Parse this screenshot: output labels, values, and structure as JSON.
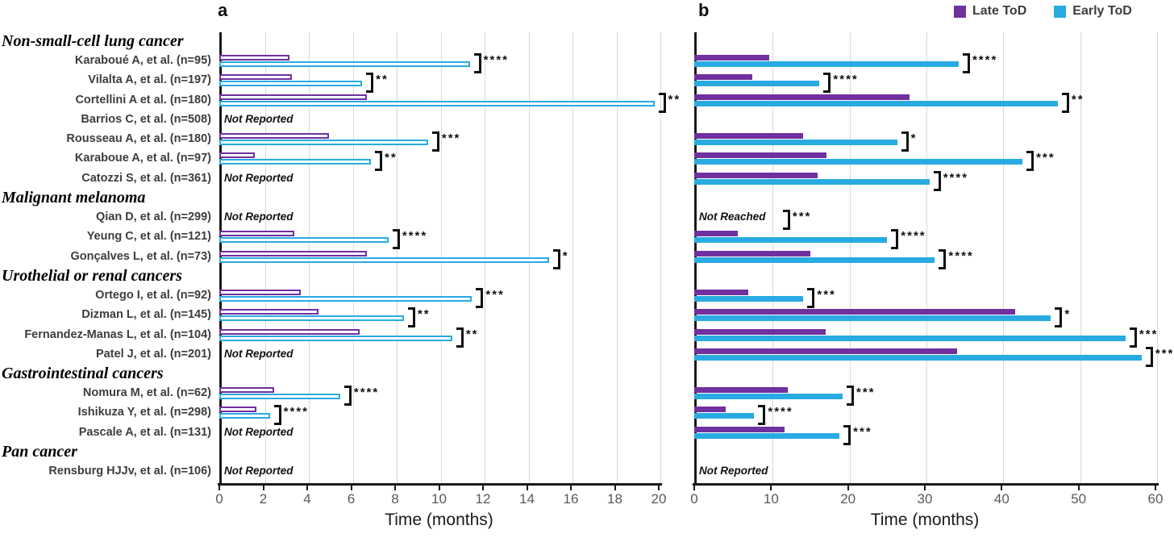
{
  "chart_data": {
    "type": "bar",
    "orientation": "horizontal",
    "legend": [
      {
        "name": "Late ToD",
        "color": "#7030A0"
      },
      {
        "name": "Early ToD",
        "color": "#29ABE2"
      }
    ],
    "colors": {
      "late": "#7030A0",
      "early": "#29ABE2",
      "axis": "#1a1a1a",
      "grid": "#d9d9d9",
      "tick_label": "#595959",
      "study_label": "#3d3d3d"
    },
    "panels": [
      {
        "letter": "a",
        "xlabel": "Time (months)",
        "xlim": [
          0,
          20
        ],
        "xticks": [
          0,
          2,
          4,
          6,
          8,
          10,
          12,
          14,
          16,
          18,
          20
        ],
        "bar_style": "outline"
      },
      {
        "letter": "b",
        "xlabel": "Time (months)",
        "xlim": [
          0,
          60
        ],
        "xticks": [
          0,
          10,
          20,
          30,
          40,
          50,
          60
        ],
        "bar_style": "solid"
      }
    ],
    "notes_legend": {
      "not_reported": "Not Reported",
      "not_reached": "Not Reached"
    },
    "groups": [
      {
        "label": "Non-small-cell lung cancer",
        "studies": [
          {
            "label": "Karaboué A, et al. (n=95)",
            "a": {
              "late": 3.2,
              "early": 11.4,
              "sig": "****"
            },
            "b": {
              "late": 9.8,
              "early": 34.4,
              "sig": "****"
            }
          },
          {
            "label": "Vilalta A, et al. (n=197)",
            "a": {
              "late": 3.3,
              "early": 6.5,
              "sig": "**"
            },
            "b": {
              "late": 7.6,
              "early": 16.3,
              "sig": "****"
            }
          },
          {
            "label": "Cortellini A et al. (n=180)",
            "a": {
              "late": 6.7,
              "early": 19.8,
              "sig": "**"
            },
            "b": {
              "late": 28.0,
              "early": 47.3,
              "sig": "**"
            }
          },
          {
            "label": "Barrios C, et al. (n=508)",
            "a": {
              "note": "Not Reported"
            },
            "b": {}
          },
          {
            "label": "Rousseau A, et al. (n=180)",
            "a": {
              "late": 5.0,
              "early": 9.5,
              "sig": "***"
            },
            "b": {
              "late": 14.2,
              "early": 26.4,
              "sig": "*"
            }
          },
          {
            "label": "Karaboue A, et al. (n=97)",
            "a": {
              "late": 1.6,
              "early": 6.9,
              "sig": "**"
            },
            "b": {
              "late": 17.2,
              "early": 42.7,
              "sig": "***"
            }
          },
          {
            "label": "Catozzi S, et al. (n=361)",
            "a": {
              "note": "Not Reported"
            },
            "b": {
              "late": 16.0,
              "early": 30.6,
              "sig": "****"
            }
          }
        ]
      },
      {
        "label": "Malignant melanoma",
        "studies": [
          {
            "label": "Qian D, et al. (n=299)",
            "a": {
              "note": "Not Reported"
            },
            "b": {
              "note": "Not Reached",
              "sig": "***",
              "sig_x": 11
            }
          },
          {
            "label": "Yeung C, et al. (n=121)",
            "a": {
              "late": 3.4,
              "early": 7.7,
              "sig": "****"
            },
            "b": {
              "late": 5.7,
              "early": 25.1,
              "sig": "****"
            }
          },
          {
            "label": "Gonçalves L, et al. (n=73)",
            "a": {
              "late": 6.7,
              "early": 15.0,
              "sig": "*"
            },
            "b": {
              "late": 15.1,
              "early": 31.3,
              "sig": "****"
            }
          }
        ]
      },
      {
        "label": "Urothelial or renal cancers",
        "studies": [
          {
            "label": "Ortego I, et al. (n=92)",
            "a": {
              "late": 3.7,
              "early": 11.5,
              "sig": "***"
            },
            "b": {
              "late": 7.0,
              "early": 14.2,
              "sig": "***"
            }
          },
          {
            "label": "Dizman L, et al. (n=145)",
            "a": {
              "late": 4.5,
              "early": 8.4,
              "sig": "**"
            },
            "b": {
              "late": 41.8,
              "early": 46.4,
              "sig": "*"
            }
          },
          {
            "label": "Fernandez-Manas L, et al. (n=104)",
            "a": {
              "late": 6.4,
              "early": 10.6,
              "sig": "**"
            },
            "b": {
              "late": 17.1,
              "early": 56.1,
              "sig": "***"
            }
          },
          {
            "label": "Patel J, et al. (n=201)",
            "a": {
              "note": "Not Reported"
            },
            "b": {
              "late": 34.2,
              "early": 58.2,
              "sig": "***"
            }
          }
        ]
      },
      {
        "label": "Gastrointestinal cancers",
        "studies": [
          {
            "label": "Nomura M, et al. (n=62)",
            "a": {
              "late": 2.5,
              "early": 5.5,
              "sig": "****"
            },
            "b": {
              "late": 12.2,
              "early": 19.3,
              "sig": "***"
            }
          },
          {
            "label": "Ishikuza Y, et al. (n=298)",
            "a": {
              "late": 1.7,
              "early": 2.3,
              "sig": "****"
            },
            "b": {
              "late": 4.1,
              "early": 7.8,
              "sig": "****"
            }
          },
          {
            "label": "Pascale A, et al. (n=131)",
            "a": {
              "note": "Not Reported"
            },
            "b": {
              "late": 11.7,
              "early": 18.9,
              "sig": "***"
            }
          }
        ]
      },
      {
        "label": "Pan cancer",
        "studies": [
          {
            "label": "Rensburg HJJv, et al. (n=106)",
            "a": {
              "note": "Not Reported"
            },
            "b": {
              "note": "Not Reported"
            }
          }
        ]
      }
    ]
  }
}
